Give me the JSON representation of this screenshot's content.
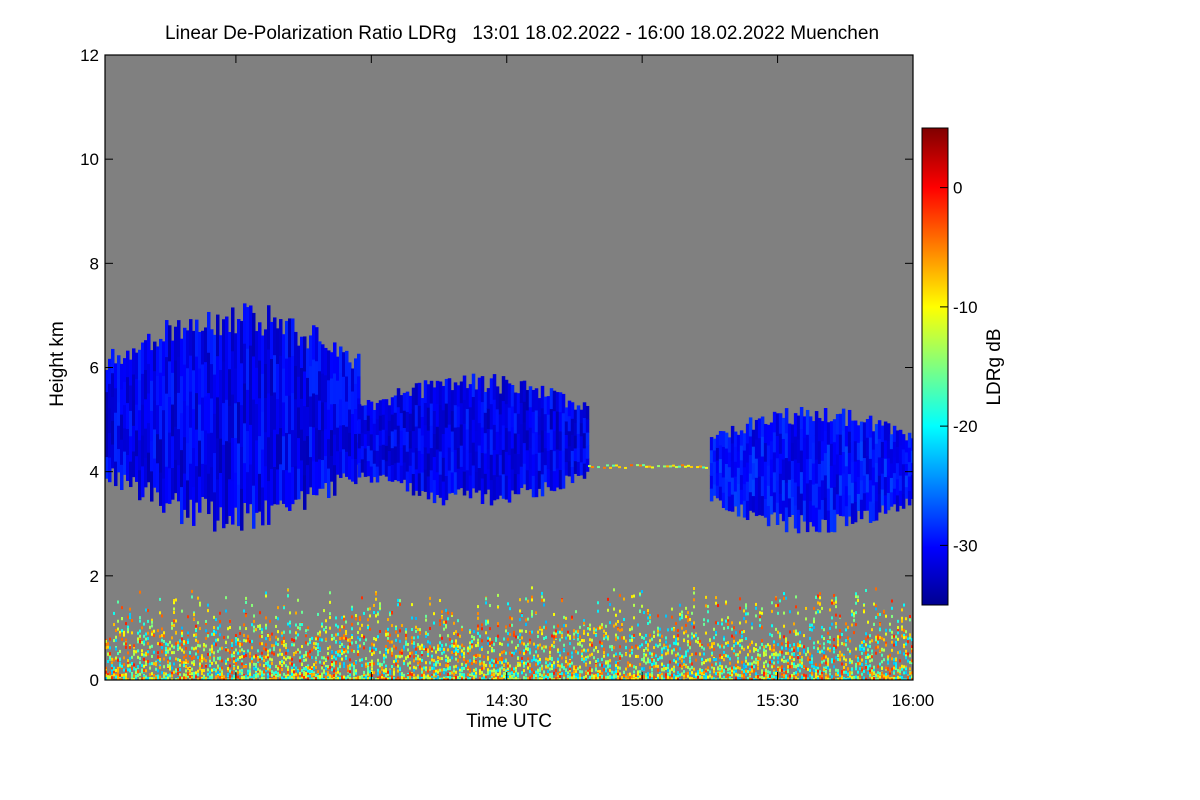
{
  "chart_data": {
    "type": "heatmap",
    "title": "Linear De-Polarization Ratio LDRg   13:01 18.02.2022 - 16:00 18.02.2022 Muenchen",
    "xlabel": "Time UTC",
    "ylabel": "Height km",
    "colorbar_label": "LDRg dB",
    "x_range_utc": [
      "13:01",
      "16:00"
    ],
    "y_range_km": [
      0,
      12
    ],
    "x_ticks": [
      "13:30",
      "14:00",
      "14:30",
      "15:00",
      "15:30",
      "16:00"
    ],
    "y_ticks": [
      "0",
      "2",
      "4",
      "6",
      "8",
      "10",
      "12"
    ],
    "colorbar_range_db": [
      -35,
      5
    ],
    "colorbar_ticks": [
      "0",
      "-10",
      "-20",
      "-30"
    ],
    "background_color": "#808080",
    "colormap": [
      "#00008f",
      "#0000ff",
      "#00ffff",
      "#ffff00",
      "#ff0000",
      "#800000"
    ],
    "features": [
      {
        "name": "cloud layer 1",
        "time_start": "13:01",
        "time_end": "13:57",
        "base_km": 2.8,
        "top_km": 7.3,
        "typical_ldr_db": -31
      },
      {
        "name": "cloud layer 2",
        "time_start": "13:57",
        "time_end": "14:48",
        "base_km": 3.3,
        "top_km": 5.9,
        "typical_ldr_db": -31
      },
      {
        "name": "cloud layer 3",
        "time_start": "15:15",
        "time_end": "16:00",
        "base_km": 2.8,
        "top_km": 5.3,
        "typical_ldr_db": -30
      },
      {
        "name": "thin layer",
        "time_start": "14:48",
        "time_end": "15:15",
        "height_km": 4.1,
        "typical_ldr_db": -10
      },
      {
        "name": "boundary layer aerosol",
        "time_start": "13:01",
        "time_end": "16:00",
        "base_km": 0.0,
        "top_km": 1.8,
        "typical_ldr_db": -12
      }
    ]
  }
}
